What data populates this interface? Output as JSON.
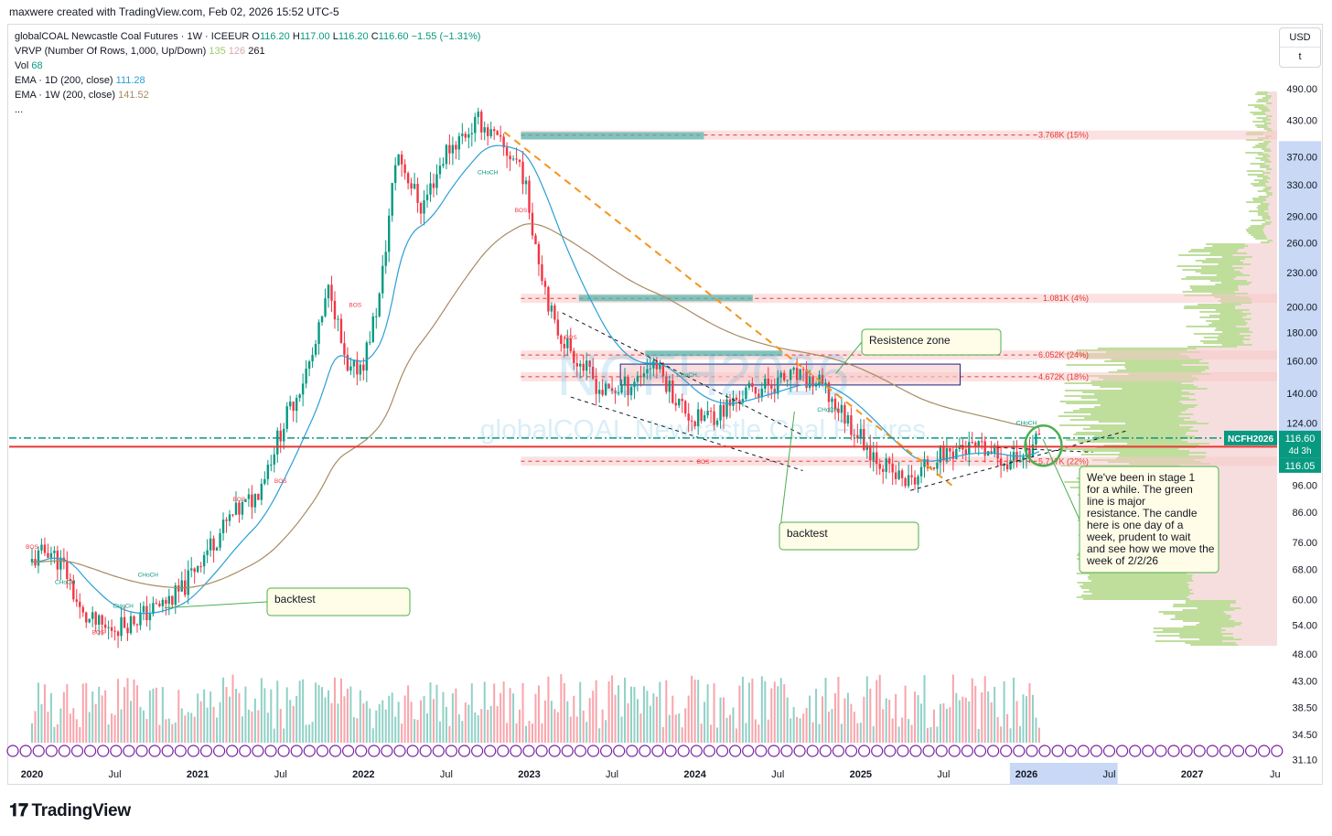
{
  "header": {
    "attribution": "maxwere created with TradingView.com, Feb 02, 2026 15:52 UTC-5"
  },
  "legend": {
    "symbol": "globalCOAL Newcastle Coal Futures · 1W · ICEEUR",
    "ohlc": {
      "o_label": "O",
      "o": "116.20",
      "h_label": "H",
      "h": "117.00",
      "l_label": "L",
      "l": "116.20",
      "c_label": "C",
      "c": "116.60",
      "change": "−1.55 (−1.31%)"
    },
    "vrvp": {
      "label": "VRVP (Number Of Rows, 1,000, Up/Down)",
      "up": "135",
      "down": "126",
      "total": "261"
    },
    "vol": {
      "label": "Vol",
      "value": "68"
    },
    "ema1d": {
      "label": "EMA · 1D (200, close)",
      "value": "111.28"
    },
    "ema1w": {
      "label": "EMA · 1W (200, close)",
      "value": "141.52"
    },
    "more": "..."
  },
  "currency_box": {
    "currency": "USD",
    "unit": "t"
  },
  "watermark": {
    "ticker": "NCFH2026",
    "name": "globalCOAL Newcastle Coal Futures"
  },
  "price_badges": {
    "symbol": "NCFH2026",
    "last": "116.60",
    "countdown": "4d 3h",
    "level": "116.05"
  },
  "colors": {
    "up": "#089981",
    "down": "#f23645",
    "ema_fast": "#2a9fd6",
    "ema_slow": "#a88b62",
    "trend": "#f7931a",
    "resistance": "#e53935",
    "volume_profile": "#8bc34a"
  },
  "chart_data": {
    "type": "candlestick",
    "title": "globalCOAL Newcastle Coal Futures · 1W · ICEEUR",
    "scale": "log",
    "ylim": [
      31.1,
      520
    ],
    "xlabel": "",
    "ylabel": "",
    "y_ticks": [
      "490.00",
      "430.00",
      "370.00",
      "330.00",
      "290.00",
      "260.00",
      "230.00",
      "200.00",
      "180.00",
      "160.00",
      "140.00",
      "124.00",
      "96.00",
      "86.00",
      "76.00",
      "68.00",
      "60.00",
      "54.00",
      "48.00",
      "43.00",
      "38.50",
      "34.50",
      "31.10"
    ],
    "x_ticks": [
      "2020",
      "Jul",
      "2021",
      "Jul",
      "2022",
      "Jul",
      "2023",
      "Jul",
      "2024",
      "Jul",
      "2025",
      "Jul",
      "2026",
      "Jul",
      "2027",
      "Ju"
    ],
    "price_path": [
      {
        "t": 2020.0,
        "p": 70
      },
      {
        "t": 2020.1,
        "p": 74
      },
      {
        "t": 2020.2,
        "p": 68
      },
      {
        "t": 2020.3,
        "p": 56
      },
      {
        "t": 2020.45,
        "p": 53
      },
      {
        "t": 2020.6,
        "p": 55
      },
      {
        "t": 2020.75,
        "p": 58
      },
      {
        "t": 2020.9,
        "p": 62
      },
      {
        "t": 2021.0,
        "p": 70
      },
      {
        "t": 2021.2,
        "p": 84
      },
      {
        "t": 2021.35,
        "p": 92
      },
      {
        "t": 2021.5,
        "p": 120
      },
      {
        "t": 2021.7,
        "p": 165
      },
      {
        "t": 2021.8,
        "p": 220
      },
      {
        "t": 2021.9,
        "p": 150
      },
      {
        "t": 2022.0,
        "p": 160
      },
      {
        "t": 2022.1,
        "p": 210
      },
      {
        "t": 2022.2,
        "p": 380
      },
      {
        "t": 2022.35,
        "p": 300
      },
      {
        "t": 2022.5,
        "p": 380
      },
      {
        "t": 2022.7,
        "p": 430
      },
      {
        "t": 2022.85,
        "p": 380
      },
      {
        "t": 2022.95,
        "p": 360
      },
      {
        "t": 2023.05,
        "p": 250
      },
      {
        "t": 2023.15,
        "p": 185
      },
      {
        "t": 2023.3,
        "p": 160
      },
      {
        "t": 2023.45,
        "p": 140
      },
      {
        "t": 2023.6,
        "p": 145
      },
      {
        "t": 2023.75,
        "p": 160
      },
      {
        "t": 2023.9,
        "p": 135
      },
      {
        "t": 2024.0,
        "p": 125
      },
      {
        "t": 2024.15,
        "p": 130
      },
      {
        "t": 2024.3,
        "p": 140
      },
      {
        "t": 2024.45,
        "p": 145
      },
      {
        "t": 2024.6,
        "p": 150
      },
      {
        "t": 2024.75,
        "p": 145
      },
      {
        "t": 2024.9,
        "p": 128
      },
      {
        "t": 2025.05,
        "p": 112
      },
      {
        "t": 2025.2,
        "p": 100
      },
      {
        "t": 2025.3,
        "p": 97
      },
      {
        "t": 2025.45,
        "p": 108
      },
      {
        "t": 2025.6,
        "p": 112
      },
      {
        "t": 2025.75,
        "p": 110
      },
      {
        "t": 2025.9,
        "p": 106
      },
      {
        "t": 2026.0,
        "p": 110
      },
      {
        "t": 2026.08,
        "p": 116.6
      }
    ],
    "horizontal_lines": [
      {
        "label": "",
        "price": 116.6,
        "style": "dash-dot",
        "color": "#089981"
      },
      {
        "label": "",
        "price": 112.5,
        "style": "solid",
        "color": "#e53935"
      }
    ],
    "zones": [
      {
        "label": "3.768K (15%)",
        "price": 405
      },
      {
        "label": "1.081K (4%)",
        "price": 207
      },
      {
        "label": "6.052K (24%)",
        "price": 164
      },
      {
        "label": "4.672K (18%)",
        "price": 150
      },
      {
        "label": "5.717K (22%)",
        "price": 106
      }
    ],
    "annotations": [
      {
        "text": "Resistence zone"
      },
      {
        "text": "backtest"
      },
      {
        "text": "backtest"
      },
      {
        "text": "We've been in stage 1 for a while.  The green line is major resistance.  The candle here is one day of a week, prudent to wait and see how we move the week of 2/2/26"
      }
    ],
    "structure_labels": [
      "BOS",
      "CHoCH",
      "BOS",
      "CHoCH",
      "BOS",
      "BOS",
      "BOS",
      "BOS",
      "CHoCH",
      "BOS",
      "CHoCH",
      "BOS",
      "CHoCH",
      "CHoCH",
      "CHoCH"
    ]
  }
}
